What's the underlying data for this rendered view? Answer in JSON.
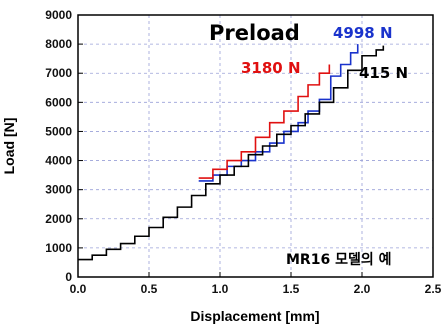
{
  "chart_data": {
    "type": "line",
    "xlabel": "Displacement [mm]",
    "ylabel": "Load [N]",
    "xlim": [
      0,
      2.5
    ],
    "ylim": [
      0,
      9000
    ],
    "xticks": [
      "0.0",
      "0.5",
      "1.0",
      "1.5",
      "2.0",
      "2.5"
    ],
    "yticks": [
      "0",
      "1000",
      "2000",
      "3000",
      "4000",
      "5000",
      "6000",
      "7000",
      "8000",
      "9000"
    ],
    "grid": true,
    "legend_title": "Preload",
    "annotation": "MR16 모델의 예",
    "series": [
      {
        "name": "4998 N",
        "color": "#1a33cc",
        "points": [
          [
            0.85,
            3300
          ],
          [
            0.95,
            3500
          ],
          [
            1.05,
            3800
          ],
          [
            1.15,
            4000
          ],
          [
            1.25,
            4300
          ],
          [
            1.35,
            4600
          ],
          [
            1.45,
            5000
          ],
          [
            1.55,
            5300
          ],
          [
            1.62,
            5700
          ],
          [
            1.7,
            6100
          ],
          [
            1.78,
            6900
          ],
          [
            1.85,
            7300
          ],
          [
            1.92,
            7700
          ],
          [
            1.97,
            8000
          ]
        ]
      },
      {
        "name": "3180 N",
        "color": "#e01010",
        "points": [
          [
            0.85,
            3400
          ],
          [
            0.95,
            3700
          ],
          [
            1.05,
            4000
          ],
          [
            1.15,
            4300
          ],
          [
            1.25,
            4800
          ],
          [
            1.35,
            5300
          ],
          [
            1.45,
            5700
          ],
          [
            1.55,
            6200
          ],
          [
            1.62,
            6600
          ],
          [
            1.7,
            7000
          ],
          [
            1.77,
            7300
          ]
        ]
      },
      {
        "name": "415 N",
        "color": "#000000",
        "points": [
          [
            0.0,
            600
          ],
          [
            0.1,
            750
          ],
          [
            0.2,
            950
          ],
          [
            0.3,
            1150
          ],
          [
            0.4,
            1400
          ],
          [
            0.5,
            1700
          ],
          [
            0.6,
            2050
          ],
          [
            0.7,
            2400
          ],
          [
            0.8,
            2800
          ],
          [
            0.9,
            3200
          ],
          [
            1.0,
            3500
          ],
          [
            1.1,
            3800
          ],
          [
            1.2,
            4200
          ],
          [
            1.3,
            4500
          ],
          [
            1.4,
            4900
          ],
          [
            1.5,
            5200
          ],
          [
            1.6,
            5600
          ],
          [
            1.7,
            6000
          ],
          [
            1.8,
            6500
          ],
          [
            1.9,
            7100
          ],
          [
            2.0,
            7600
          ],
          [
            2.1,
            7800
          ],
          [
            2.15,
            7950
          ]
        ]
      }
    ]
  }
}
